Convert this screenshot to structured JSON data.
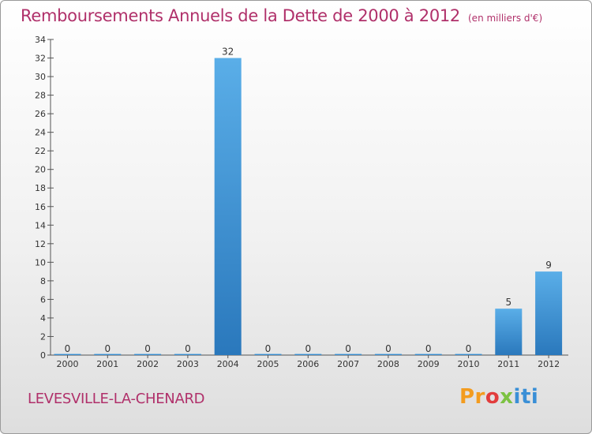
{
  "chart_data": {
    "type": "bar",
    "title": "Remboursements Annuels de la Dette de 2000 à 2012",
    "subtitle": "(en milliers d'€)",
    "categories": [
      "2000",
      "2001",
      "2002",
      "2003",
      "2004",
      "2005",
      "2006",
      "2007",
      "2008",
      "2009",
      "2010",
      "2011",
      "2012"
    ],
    "values": [
      0,
      0,
      0,
      0,
      32,
      0,
      0,
      0,
      0,
      0,
      0,
      5,
      9
    ],
    "ylim": [
      0,
      34
    ],
    "yticks": [
      0,
      2,
      4,
      6,
      8,
      10,
      12,
      14,
      16,
      18,
      20,
      22,
      24,
      26,
      28,
      30,
      32,
      34
    ],
    "xlabel": "",
    "ylabel": "",
    "grid": false,
    "colors": {
      "bar_top": "#5aaee8",
      "bar_bottom": "#2a78bc",
      "title": "#b0306a"
    }
  },
  "commune": "LEVESVILLE-LA-CHENARD",
  "logo": {
    "parts": [
      "Pr",
      "o",
      "x",
      "iti"
    ]
  }
}
